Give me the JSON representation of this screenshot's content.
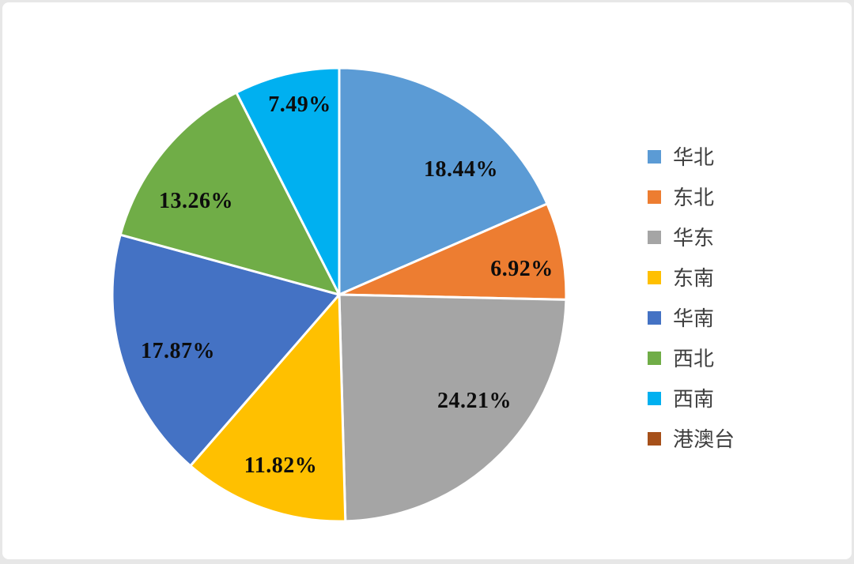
{
  "chart_data": {
    "type": "pie",
    "title": "",
    "legend_position": "right",
    "direction": "clockwise",
    "start_angle_deg": 0,
    "categories": [
      "华北",
      "东北",
      "华东",
      "东南",
      "华南",
      "西北",
      "西南",
      "港澳台"
    ],
    "values": [
      18.44,
      6.92,
      24.21,
      11.82,
      17.87,
      13.26,
      7.49,
      0
    ],
    "labels": [
      "18.44%",
      "6.92%",
      "24.21%",
      "11.82%",
      "17.87%",
      "13.26%",
      "7.49%",
      ""
    ],
    "colors": [
      "#5B9BD5",
      "#ED7D31",
      "#A5A5A5",
      "#FFC000",
      "#4472C4",
      "#70AD47",
      "#00B0F0",
      "#A6501A"
    ],
    "slice_border_color": "#FFFFFF",
    "label_color": "#0d0d0d",
    "legend_text_color": "#3f3f3f"
  }
}
